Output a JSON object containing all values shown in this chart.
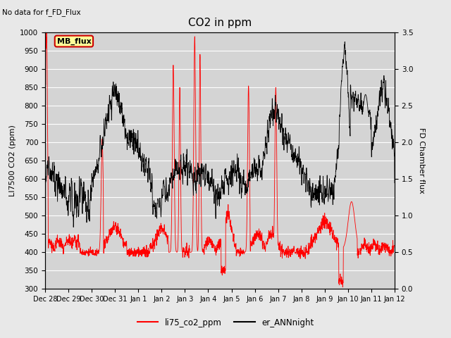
{
  "title": "CO2 in ppm",
  "ylabel_left": "LI7500 CO2 (ppm)",
  "ylabel_right": "FD Chamber flux",
  "ylim_left": [
    300,
    1000
  ],
  "ylim_right": [
    0.0,
    3.5
  ],
  "no_data_text": "No data for f_FD_Flux",
  "annotation_text": "MB_flux",
  "legend_labels": [
    "li75_co2_ppm",
    "er_ANNnight"
  ],
  "red_color": "#ff0000",
  "black_color": "#000000",
  "bg_color": "#e8e8e8",
  "plot_bg_color": "#d4d4d4",
  "annotation_bg": "#ffff99",
  "annotation_border": "#cc0000",
  "tick_dates": [
    "Dec 28",
    "Dec 29",
    "Dec 30",
    "Dec 31",
    "Jan 1",
    "Jan 2",
    "Jan 3",
    "Jan 4",
    "Jan 5",
    "Jan 6",
    "Jan 7",
    "Jan 8",
    "Jan 9",
    "Jan 10",
    "Jan 11",
    "Jan 12"
  ],
  "n_points": 2000,
  "total_days": 15
}
